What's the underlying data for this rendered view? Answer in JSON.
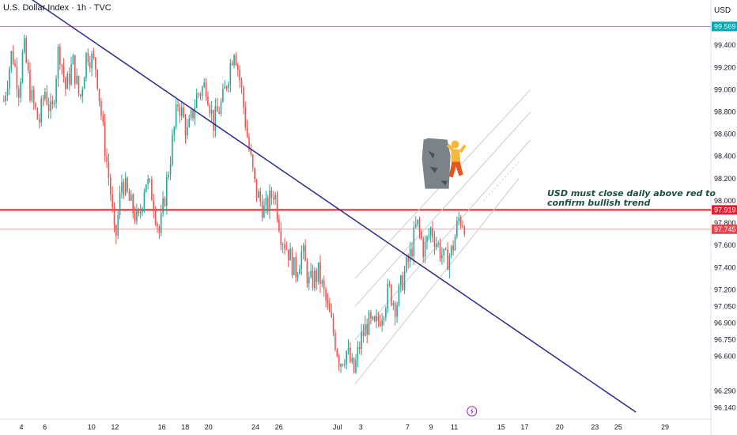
{
  "header": {
    "title": "U.S. Dollar Index · 1h · TVC",
    "currency": "USD"
  },
  "annotation": {
    "line1": "USD must close daily above red to",
    "line2": "confirm bullish trend"
  },
  "chart_data": {
    "type": "candlestick",
    "title": "U.S. Dollar Index · 1h · TVC",
    "ylim": [
      96.05,
      99.75
    ],
    "y_ticks": [
      {
        "value": 99.4,
        "label": "99.400"
      },
      {
        "value": 99.2,
        "label": "99.200"
      },
      {
        "value": 99.0,
        "label": "99.000"
      },
      {
        "value": 98.8,
        "label": "98.800"
      },
      {
        "value": 98.6,
        "label": "98.600"
      },
      {
        "value": 98.4,
        "label": "98.400"
      },
      {
        "value": 98.2,
        "label": "98.200"
      },
      {
        "value": 98.0,
        "label": "98.000"
      },
      {
        "value": 97.8,
        "label": "97.800"
      },
      {
        "value": 97.6,
        "label": "97.600"
      },
      {
        "value": 97.4,
        "label": "97.400"
      },
      {
        "value": 97.2,
        "label": "97.200"
      },
      {
        "value": 97.05,
        "label": "97.050"
      },
      {
        "value": 96.9,
        "label": "96.900"
      },
      {
        "value": 96.75,
        "label": "96.750"
      },
      {
        "value": 96.6,
        "label": "96.600"
      },
      {
        "value": 96.29,
        "label": "96.290"
      },
      {
        "value": 96.14,
        "label": "96.140"
      }
    ],
    "x_ticks": [
      "4",
      "6",
      "10",
      "12",
      "16",
      "18",
      "20",
      "24",
      "26",
      "Jul",
      "3",
      "7",
      "9",
      "11",
      "15",
      "17",
      "20",
      "23",
      "25",
      "29"
    ],
    "x_tick_days": [
      4,
      6,
      10,
      12,
      16,
      18,
      20,
      24,
      26,
      31,
      33,
      37,
      39,
      41,
      45,
      47,
      50,
      53,
      55,
      59
    ],
    "price_labels": [
      {
        "value": 99.569,
        "label": "99.569",
        "color": "#00a8b5"
      },
      {
        "value": 97.919,
        "label": "97.919",
        "color": "#e02030"
      },
      {
        "value": 97.745,
        "label": "97.745",
        "color": "#e8434f"
      }
    ],
    "horizontal_levels": [
      {
        "value": 99.569,
        "color": "#36c2d0"
      },
      {
        "value": 97.919,
        "color": "#e02030"
      },
      {
        "value": 97.745,
        "color": "#f3a3a8"
      }
    ],
    "trendline": {
      "start": {
        "day": 4.5,
        "value": 99.84
      },
      "end": {
        "day": 56.5,
        "value": 96.1
      },
      "color": "#2a2a8c"
    },
    "channel": [
      {
        "start": {
          "day": 32.5,
          "value": 96.35
        },
        "end": {
          "day": 46.5,
          "value": 98.2
        }
      },
      {
        "start": {
          "day": 32.5,
          "value": 96.75
        },
        "end": {
          "day": 47.5,
          "value": 98.55
        }
      },
      {
        "start": {
          "day": 32.5,
          "value": 97.05
        },
        "end": {
          "day": 47.5,
          "value": 98.8
        }
      },
      {
        "start": {
          "day": 32.5,
          "value": 97.3
        },
        "end": {
          "day": 47.5,
          "value": 99.0
        }
      }
    ],
    "path_points": [
      [
        2.5,
        98.9
      ],
      [
        3.2,
        99.35
      ],
      [
        3.8,
        99.0
      ],
      [
        4.2,
        99.4
      ],
      [
        4.8,
        98.95
      ],
      [
        5.5,
        98.7
      ],
      [
        6.0,
        99.0
      ],
      [
        6.6,
        98.75
      ],
      [
        7.2,
        99.4
      ],
      [
        7.8,
        99.0
      ],
      [
        8.4,
        99.25
      ],
      [
        9.0,
        98.9
      ],
      [
        9.6,
        99.35
      ],
      [
        10.4,
        99.2
      ],
      [
        11.0,
        98.6
      ],
      [
        11.6,
        98.1
      ],
      [
        12.0,
        97.6
      ],
      [
        12.6,
        98.2
      ],
      [
        13.2,
        98.0
      ],
      [
        14.0,
        97.8
      ],
      [
        14.6,
        98.2
      ],
      [
        15.2,
        98.05
      ],
      [
        15.8,
        97.7
      ],
      [
        16.6,
        98.3
      ],
      [
        17.4,
        98.9
      ],
      [
        18.2,
        98.6
      ],
      [
        19.0,
        98.95
      ],
      [
        19.8,
        99.05
      ],
      [
        20.4,
        98.7
      ],
      [
        21.2,
        98.9
      ],
      [
        21.8,
        99.2
      ],
      [
        22.2,
        99.4
      ],
      [
        22.8,
        99.0
      ],
      [
        23.4,
        98.5
      ],
      [
        24.0,
        98.1
      ],
      [
        24.8,
        97.9
      ],
      [
        25.6,
        98.1
      ],
      [
        26.2,
        97.7
      ],
      [
        26.8,
        97.55
      ],
      [
        27.4,
        97.35
      ],
      [
        28.0,
        97.55
      ],
      [
        28.6,
        97.25
      ],
      [
        29.4,
        97.35
      ],
      [
        30.0,
        97.1
      ],
      [
        30.6,
        96.85
      ],
      [
        31.2,
        96.55
      ],
      [
        31.8,
        96.65
      ],
      [
        32.4,
        96.45
      ],
      [
        33.0,
        96.75
      ],
      [
        33.6,
        96.9
      ],
      [
        34.2,
        96.85
      ],
      [
        34.8,
        97.0
      ],
      [
        35.4,
        97.2
      ],
      [
        36.0,
        97.05
      ],
      [
        36.6,
        97.3
      ],
      [
        37.2,
        97.5
      ],
      [
        37.8,
        97.8
      ],
      [
        38.4,
        97.55
      ],
      [
        39.0,
        97.75
      ],
      [
        39.6,
        97.6
      ],
      [
        40.2,
        97.45
      ],
      [
        40.8,
        97.55
      ],
      [
        41.4,
        97.85
      ],
      [
        41.9,
        97.8
      ]
    ],
    "event_marker": {
      "day": 42.5,
      "icon": "lightning-bolt"
    }
  }
}
